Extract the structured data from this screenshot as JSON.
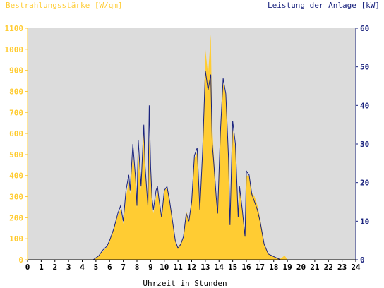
{
  "chart_data": {
    "type": "area",
    "left_axis_title": "Bestrahlungsstärke [W/qm]",
    "right_axis_title": "Leistung der Anlage [kW]",
    "xlabel": "Uhrzeit in Stunden",
    "x_ticks": [
      "0",
      "1",
      "2",
      "3",
      "4",
      "5",
      "6",
      "7",
      "8",
      "9",
      "10",
      "11",
      "12",
      "13",
      "14",
      "15",
      "16",
      "17",
      "18",
      "19",
      "20",
      "21",
      "22",
      "23",
      "24"
    ],
    "xlim": [
      0,
      24
    ],
    "left_ticks": [
      "0",
      "100",
      "200",
      "300",
      "400",
      "500",
      "600",
      "700",
      "800",
      "900",
      "1000",
      "1100"
    ],
    "ylim_left": [
      0,
      1100
    ],
    "right_ticks": [
      "0",
      "10",
      "20",
      "30",
      "40",
      "50",
      "60"
    ],
    "ylim_right": [
      0,
      60
    ],
    "grid": false,
    "colors": {
      "background": "#dcdcdc",
      "irradiance": "#ffcc33",
      "power": "#1a237e",
      "left_axis": "#ffcc33",
      "right_axis": "#1a237e"
    },
    "series": [
      {
        "name": "Bestrahlungsstärke [W/qm]",
        "axis": "left",
        "x": [
          0,
          4.8,
          5.2,
          5.5,
          5.8,
          6.0,
          6.3,
          6.6,
          6.8,
          7.0,
          7.2,
          7.4,
          7.5,
          7.7,
          7.9,
          8.0,
          8.1,
          8.3,
          8.5,
          8.6,
          8.8,
          8.9,
          9.0,
          9.1,
          9.2,
          9.4,
          9.5,
          9.6,
          9.8,
          10.0,
          10.2,
          10.4,
          10.6,
          10.8,
          11.0,
          11.2,
          11.4,
          11.6,
          11.8,
          12.0,
          12.2,
          12.4,
          12.6,
          12.8,
          13.0,
          13.2,
          13.4,
          13.5,
          13.6,
          13.8,
          13.9,
          14.1,
          14.3,
          14.5,
          14.7,
          14.8,
          15.0,
          15.2,
          15.4,
          15.5,
          15.7,
          15.9,
          16.0,
          16.2,
          16.4,
          16.6,
          16.8,
          17.0,
          17.3,
          17.6,
          17.9,
          18.2,
          18.5,
          18.8,
          19.0,
          19.5,
          20.0,
          20.2,
          20.3,
          20.5,
          24
        ],
        "values": [
          0,
          0,
          20,
          40,
          60,
          90,
          150,
          210,
          240,
          170,
          300,
          370,
          310,
          500,
          380,
          240,
          510,
          330,
          620,
          420,
          240,
          590,
          400,
          260,
          220,
          300,
          330,
          280,
          200,
          330,
          340,
          280,
          190,
          90,
          60,
          80,
          100,
          230,
          190,
          270,
          480,
          510,
          230,
          510,
          1000,
          880,
          1070,
          640,
          520,
          300,
          220,
          600,
          840,
          780,
          460,
          160,
          620,
          530,
          200,
          350,
          240,
          120,
          400,
          400,
          320,
          300,
          260,
          200,
          80,
          30,
          20,
          10,
          5,
          20,
          0,
          0,
          0,
          0,
          0,
          0,
          0
        ]
      },
      {
        "name": "Leistung der Anlage [kW]",
        "axis": "right",
        "x": [
          0,
          4.8,
          5.2,
          5.5,
          5.8,
          6.0,
          6.3,
          6.6,
          6.8,
          7.0,
          7.2,
          7.4,
          7.5,
          7.7,
          7.9,
          8.0,
          8.1,
          8.3,
          8.5,
          8.6,
          8.8,
          8.9,
          9.0,
          9.1,
          9.2,
          9.4,
          9.5,
          9.6,
          9.8,
          10.0,
          10.2,
          10.4,
          10.6,
          10.8,
          11.0,
          11.2,
          11.4,
          11.6,
          11.8,
          12.0,
          12.2,
          12.4,
          12.6,
          12.8,
          13.0,
          13.2,
          13.4,
          13.5,
          13.6,
          13.8,
          13.9,
          14.1,
          14.3,
          14.5,
          14.7,
          14.8,
          15.0,
          15.2,
          15.4,
          15.5,
          15.7,
          15.9,
          16.0,
          16.2,
          16.4,
          16.6,
          16.8,
          17.0,
          17.3,
          17.6,
          17.9,
          18.2,
          18.5,
          18.8,
          19.0,
          19.5,
          20.0,
          20.2,
          20.3,
          20.5,
          24
        ],
        "values": [
          0,
          0,
          1,
          2.5,
          3.5,
          5,
          8,
          12,
          14,
          10,
          18,
          22,
          18,
          30,
          21,
          14,
          31,
          19,
          35,
          24,
          14,
          40,
          24,
          16,
          13,
          18,
          19,
          16,
          11,
          18,
          19,
          15,
          10,
          5,
          3,
          4,
          6,
          12,
          10,
          15,
          27,
          29,
          13,
          28,
          49,
          44,
          48,
          30,
          26,
          16,
          12,
          33,
          47,
          43,
          26,
          9,
          36,
          30,
          11,
          19,
          13,
          6,
          23,
          22,
          17,
          15,
          13,
          10,
          4,
          1.5,
          1,
          0.5,
          0,
          0,
          0,
          0,
          0,
          0,
          0,
          0,
          0
        ]
      }
    ]
  }
}
